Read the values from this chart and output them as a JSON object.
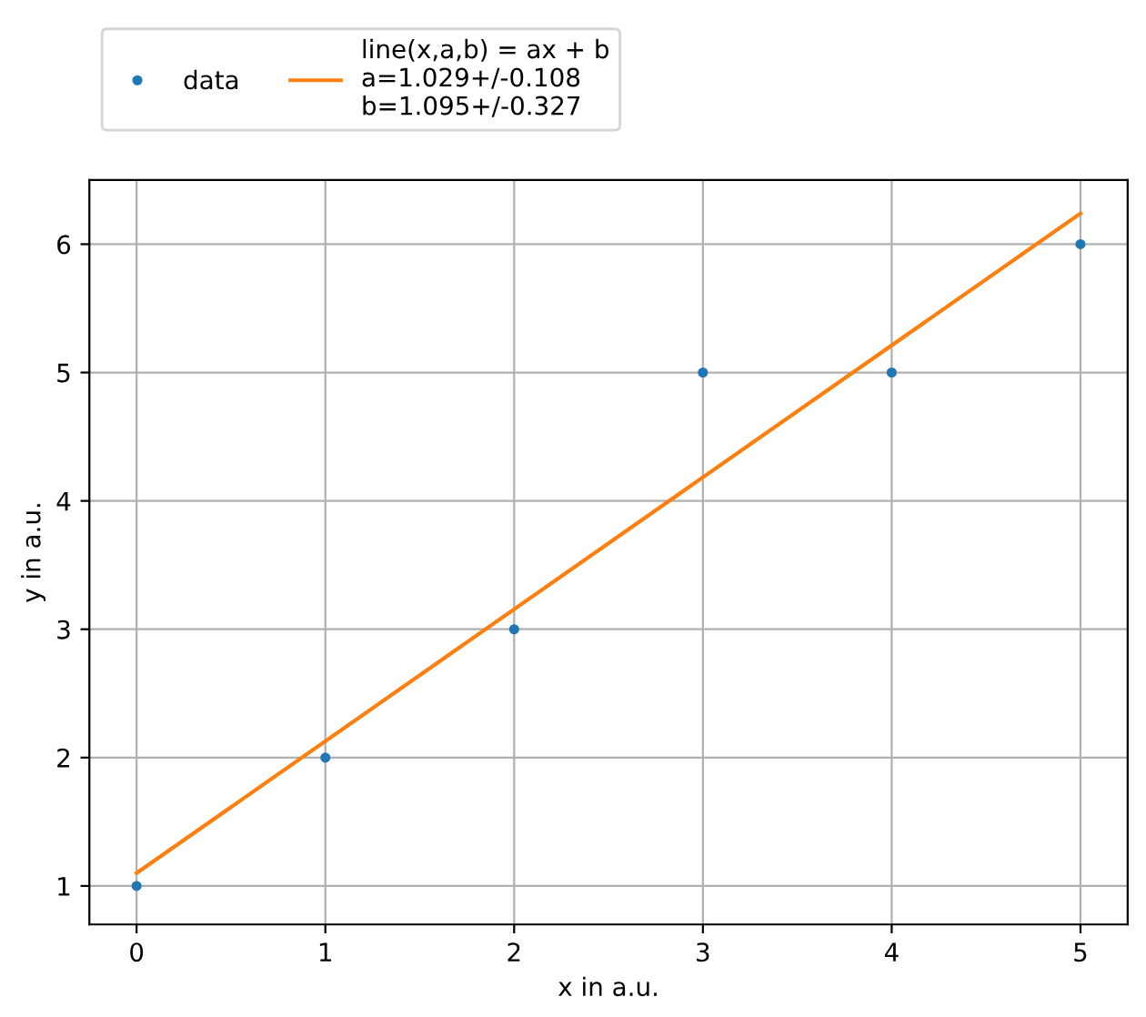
{
  "chart_data": {
    "type": "scatter",
    "xlabel": "x in a.u.",
    "ylabel": "y in a.u.",
    "series": [
      {
        "name": "data",
        "color": "#1f77b4",
        "marker": "circle",
        "x": [
          0,
          1,
          2,
          3,
          4,
          5
        ],
        "values": [
          1,
          2,
          3,
          5,
          5,
          6
        ]
      },
      {
        "name": "line(x,a,b) = ax + b\na=1.029+/-0.108\nb=1.095+/-0.327",
        "type": "line",
        "color": "#ff7f0e",
        "line_style": "solid",
        "x": [
          0,
          5
        ],
        "values": [
          1.1,
          6.24
        ]
      }
    ],
    "xlim": [
      -0.25,
      5.25
    ],
    "ylim": [
      0.7,
      6.5
    ],
    "xticks": [
      0,
      1,
      2,
      3,
      4,
      5
    ],
    "yticks": [
      1,
      2,
      3,
      4,
      5,
      6
    ],
    "grid": true,
    "legend": "top left"
  }
}
